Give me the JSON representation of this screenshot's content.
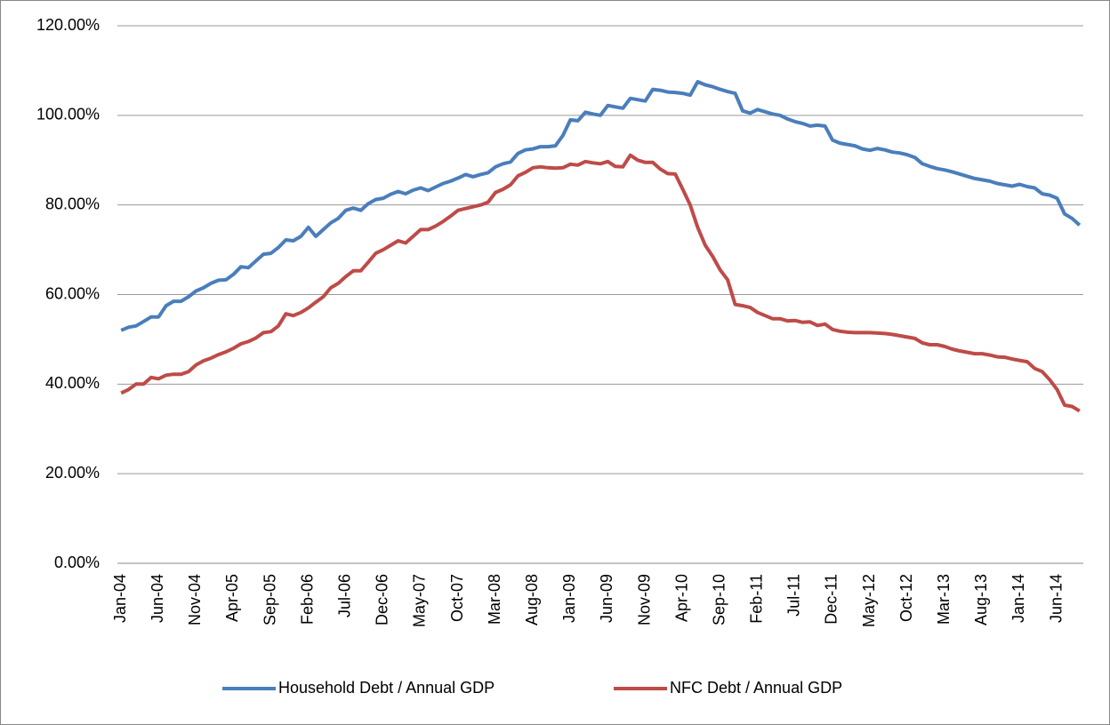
{
  "chart_data": {
    "type": "line",
    "categories": [
      "Jan-04",
      null,
      null,
      null,
      null,
      "Jun-04",
      null,
      null,
      null,
      null,
      "Nov-04",
      null,
      null,
      null,
      null,
      "Apr-05",
      null,
      null,
      null,
      null,
      "Sep-05",
      null,
      null,
      null,
      null,
      "Feb-06",
      null,
      null,
      null,
      null,
      "Jul-06",
      null,
      null,
      null,
      null,
      "Dec-06",
      null,
      null,
      null,
      null,
      "May-07",
      null,
      null,
      null,
      null,
      "Oct-07",
      null,
      null,
      null,
      null,
      "Mar-08",
      null,
      null,
      null,
      null,
      "Aug-08",
      null,
      null,
      null,
      null,
      "Jan-09",
      null,
      null,
      null,
      null,
      "Jun-09",
      null,
      null,
      null,
      null,
      "Nov-09",
      null,
      null,
      null,
      null,
      "Apr-10",
      null,
      null,
      null,
      null,
      "Sep-10",
      null,
      null,
      null,
      null,
      "Feb-11",
      null,
      null,
      null,
      null,
      "Jul-11",
      null,
      null,
      null,
      null,
      "Dec-11",
      null,
      null,
      null,
      null,
      "May-12",
      null,
      null,
      null,
      null,
      "Oct-12",
      null,
      null,
      null,
      null,
      "Mar-13",
      null,
      null,
      null,
      null,
      "Aug-13",
      null,
      null,
      null,
      null,
      "Jan-14",
      null,
      null,
      null,
      null,
      "Jun-14",
      null,
      null,
      null
    ],
    "series": [
      {
        "name": "Household Debt / Annual GDP",
        "color": "#4a7ebb",
        "values": [
          52,
          52.7,
          53,
          54,
          55,
          55,
          57.5,
          58.5,
          58.5,
          59.5,
          60.8,
          61.5,
          62.5,
          63.2,
          63.3,
          64.5,
          66.2,
          66,
          67.5,
          69,
          69.2,
          70.5,
          72.2,
          72,
          73,
          75,
          73,
          74.5,
          76,
          77,
          78.8,
          79.3,
          78.8,
          80.3,
          81.2,
          81.5,
          82.4,
          83,
          82.5,
          83.3,
          83.8,
          83.2,
          84,
          84.8,
          85.3,
          86,
          86.8,
          86.3,
          86.8,
          87.2,
          88.5,
          89.2,
          89.6,
          91.5,
          92.3,
          92.5,
          93,
          93,
          93.2,
          95.5,
          99,
          98.8,
          100.7,
          100.3,
          100,
          102.2,
          101.9,
          101.6,
          103.8,
          103.5,
          103.2,
          105.8,
          105.6,
          105.2,
          105.1,
          104.9,
          104.5,
          107.5,
          106.8,
          106.4,
          105.8,
          105.3,
          104.9,
          101,
          100.5,
          101.3,
          100.8,
          100.3,
          100,
          99.2,
          98.6,
          98.2,
          97.6,
          97.8,
          97.6,
          94.5,
          93.8,
          93.5,
          93.2,
          92.5,
          92.2,
          92.6,
          92.3,
          91.8,
          91.6,
          91.2,
          90.6,
          89.2,
          88.6,
          88.1,
          87.8,
          87.4,
          86.9,
          86.4,
          85.9,
          85.6,
          85.3,
          84.8,
          84.5,
          84.2,
          84.6,
          84.1,
          83.8,
          82.5,
          82.2,
          81.5,
          78,
          77,
          75.5
        ]
      },
      {
        "name": "NFC Debt / Annual GDP",
        "color": "#be4b48",
        "values": [
          38,
          38.8,
          40,
          40,
          41.5,
          41.2,
          42,
          42.2,
          42.2,
          42.8,
          44.3,
          45.2,
          45.8,
          46.6,
          47.2,
          48,
          49,
          49.5,
          50.3,
          51.5,
          51.7,
          53,
          55.7,
          55.3,
          56,
          57,
          58.3,
          59.5,
          61.5,
          62.5,
          64,
          65.3,
          65.3,
          67.2,
          69.2,
          70,
          71,
          72,
          71.5,
          73,
          74.5,
          74.5,
          75.3,
          76.3,
          77.5,
          78.8,
          79.2,
          79.6,
          80,
          80.6,
          82.8,
          83.5,
          84.5,
          86.5,
          87.3,
          88.3,
          88.5,
          88.3,
          88.2,
          88.3,
          89.1,
          88.9,
          89.7,
          89.4,
          89.2,
          89.7,
          88.6,
          88.5,
          91.1,
          90,
          89.5,
          89.5,
          88,
          87,
          86.9,
          83.5,
          80,
          75,
          71,
          68.5,
          65.5,
          63.3,
          57.8,
          57.5,
          57.1,
          56,
          55.3,
          54.6,
          54.6,
          54.1,
          54.2,
          53.8,
          53.9,
          53.1,
          53.4,
          52.2,
          51.8,
          51.6,
          51.5,
          51.5,
          51.5,
          51.4,
          51.3,
          51.1,
          50.8,
          50.5,
          50.2,
          49.2,
          48.8,
          48.8,
          48.4,
          47.8,
          47.4,
          47.1,
          46.8,
          46.8,
          46.5,
          46.1,
          46,
          45.6,
          45.3,
          45,
          43.5,
          42.8,
          41,
          38.8,
          35.3,
          35,
          34
        ]
      }
    ],
    "ylim": [
      0,
      120
    ],
    "yticks": [
      {
        "value": 0,
        "label": "0.00%"
      },
      {
        "value": 20,
        "label": "20.00%"
      },
      {
        "value": 40,
        "label": "40.00%"
      },
      {
        "value": 60,
        "label": "60.00%"
      },
      {
        "value": 80,
        "label": "80.00%"
      },
      {
        "value": 100,
        "label": "100.00%"
      },
      {
        "value": 120,
        "label": "120.00%"
      }
    ],
    "grid": true,
    "legend": "bottom"
  }
}
